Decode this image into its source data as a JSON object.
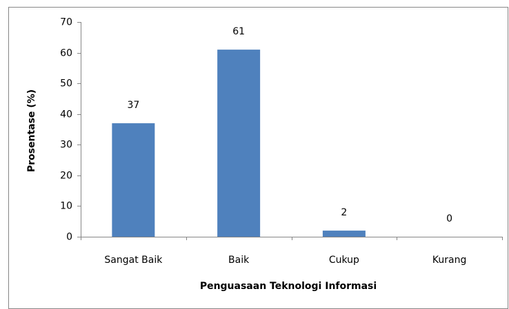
{
  "chart_data": {
    "type": "bar",
    "categories": [
      "Sangat Baik",
      "Baik",
      "Cukup",
      "Kurang"
    ],
    "values": [
      37,
      61,
      2,
      0
    ],
    "color": "#4f81bd",
    "xlabel": "Penguasaan Teknologi Informasi",
    "ylabel": "Prosentase (%)",
    "ylim": [
      0,
      70
    ],
    "yticks": [
      0,
      10,
      20,
      30,
      40,
      50,
      60,
      70
    ],
    "grid": false
  }
}
